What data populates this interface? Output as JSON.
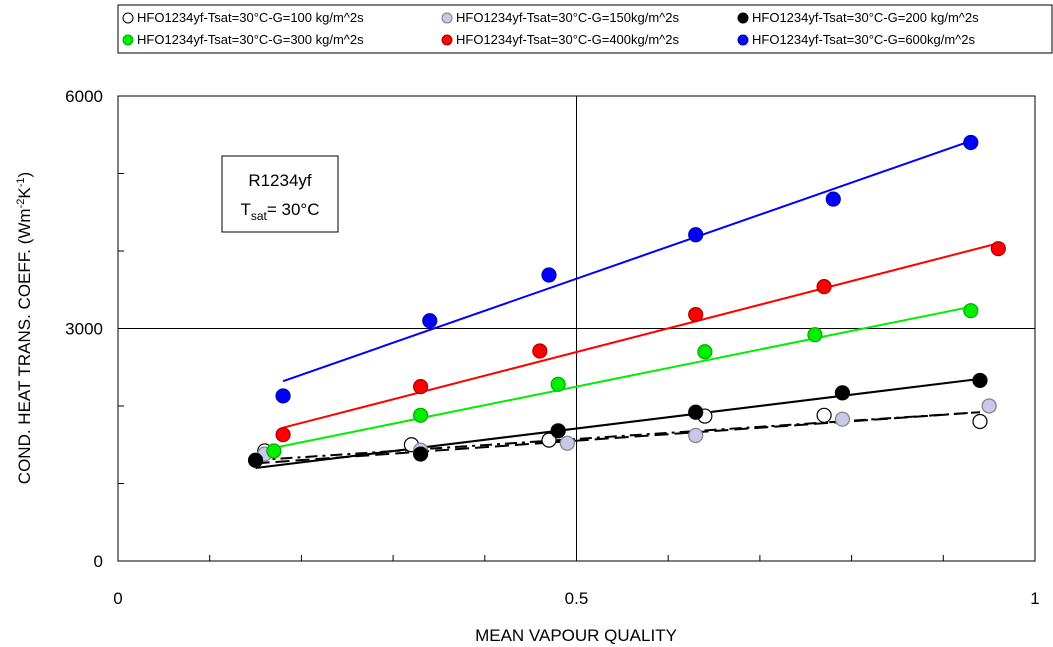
{
  "chart_data": {
    "type": "scatter",
    "xlabel": "MEAN VAPOUR QUALITY",
    "ylabel_main": "COND. HEAT TRANS. COEFF. (Wm",
    "ylabel_sup1": "-2",
    "ylabel_mid": "K",
    "ylabel_sup2": "-1",
    "ylabel_end": ")",
    "xlim": [
      0,
      1
    ],
    "ylim": [
      0,
      6000
    ],
    "xticks": [
      0,
      0.5,
      1
    ],
    "xtick_labels": [
      "0",
      "0.5",
      "1"
    ],
    "yticks": [
      0,
      3000,
      6000
    ],
    "ytick_labels": [
      "0",
      "3000",
      "6000"
    ],
    "grid": true,
    "legend_position": "top",
    "annotation": {
      "line1": "R1234yf",
      "line2_main": "T",
      "line2_sub": "sat",
      "line2_end": "= 30°C"
    },
    "series": [
      {
        "name": "HFO1234yf-Tsat=30°C-G=100 kg/m^2s",
        "fill": "#ffffff",
        "stroke": "#000000",
        "line_color": "#000000",
        "line_style": "dashdot",
        "points": [
          [
            0.16,
            1420
          ],
          [
            0.32,
            1500
          ],
          [
            0.47,
            1560
          ],
          [
            0.64,
            1870
          ],
          [
            0.77,
            1880
          ],
          [
            0.94,
            1800
          ]
        ],
        "fit": [
          [
            0.15,
            1300
          ],
          [
            0.94,
            1920
          ]
        ]
      },
      {
        "name": "HFO1234yf-Tsat=30°C-G=150kg/m^2s",
        "fill": "#c8c8e8",
        "stroke": "#808080",
        "line_color": "#000000",
        "line_style": "dash",
        "points": [
          [
            0.16,
            1380
          ],
          [
            0.33,
            1430
          ],
          [
            0.49,
            1520
          ],
          [
            0.63,
            1620
          ],
          [
            0.79,
            1830
          ],
          [
            0.95,
            2000
          ]
        ],
        "fit": [
          [
            0.15,
            1260
          ],
          [
            0.94,
            1920
          ]
        ]
      },
      {
        "name": "HFO1234yf-Tsat=30°C-G=200 kg/m^2s",
        "fill": "#000000",
        "stroke": "#000000",
        "line_color": "#000000",
        "line_style": "solid",
        "points": [
          [
            0.15,
            1300
          ],
          [
            0.33,
            1380
          ],
          [
            0.48,
            1680
          ],
          [
            0.63,
            1920
          ],
          [
            0.79,
            2170
          ],
          [
            0.94,
            2330
          ]
        ],
        "fit": [
          [
            0.15,
            1200
          ],
          [
            0.94,
            2350
          ]
        ]
      },
      {
        "name": "HFO1234yf-Tsat=30°C-G=300 kg/m^2s",
        "fill": "#00ee00",
        "stroke": "#00aa00",
        "line_color": "#00ee00",
        "line_style": "solid",
        "points": [
          [
            0.17,
            1420
          ],
          [
            0.33,
            1880
          ],
          [
            0.48,
            2280
          ],
          [
            0.64,
            2700
          ],
          [
            0.76,
            2920
          ],
          [
            0.93,
            3230
          ]
        ],
        "fit": [
          [
            0.17,
            1460
          ],
          [
            0.93,
            3280
          ]
        ]
      },
      {
        "name": "HFO1234yf-Tsat=30°C-G=400kg/m^2s",
        "fill": "#ff0000",
        "stroke": "#aa0000",
        "line_color": "#ff0000",
        "line_style": "solid",
        "points": [
          [
            0.18,
            1630
          ],
          [
            0.33,
            2250
          ],
          [
            0.46,
            2710
          ],
          [
            0.63,
            3180
          ],
          [
            0.77,
            3540
          ],
          [
            0.96,
            4030
          ]
        ],
        "fit": [
          [
            0.18,
            1720
          ],
          [
            0.96,
            4100
          ]
        ]
      },
      {
        "name": "HFO1234yf-Tsat=30°C-G=600kg/m^2s",
        "fill": "#0000ff",
        "stroke": "#0000aa",
        "line_color": "#0000ff",
        "line_style": "solid",
        "points": [
          [
            0.18,
            2130
          ],
          [
            0.34,
            3100
          ],
          [
            0.47,
            3690
          ],
          [
            0.63,
            4210
          ],
          [
            0.78,
            4670
          ],
          [
            0.93,
            5400
          ]
        ],
        "fit": [
          [
            0.18,
            2320
          ],
          [
            0.93,
            5420
          ]
        ]
      }
    ]
  }
}
